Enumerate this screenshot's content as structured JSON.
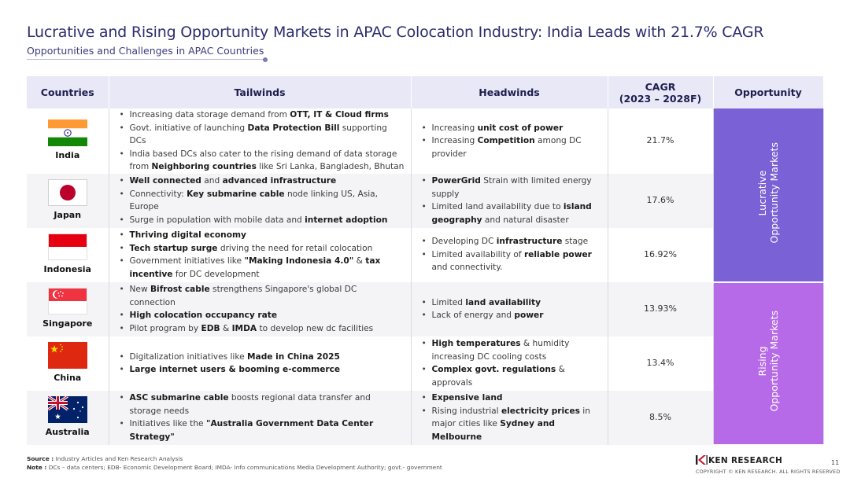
{
  "header": {
    "title": "Lucrative and Rising Opportunity Markets in APAC Colocation Industry: India Leads with 21.7% CAGR",
    "subtitle": "Opportunities and Challenges in APAC Countries"
  },
  "table": {
    "headers": {
      "countries": "Countries",
      "tailwinds": "Tailwinds",
      "headwinds": "Headwinds",
      "cagr_line1": "CAGR",
      "cagr_line2": "(2023 – 2028F)",
      "opportunity": "Opportunity"
    },
    "rows": [
      {
        "country": "India",
        "flag_icon": "india-flag-icon",
        "cagr": "21.7%",
        "tailwinds": [
          [
            "Increasing data storage demand from ",
            "OTT, IT & Cloud firms",
            ""
          ],
          [
            "Govt. initiative of launching ",
            "Data Protection Bill",
            " supporting DCs"
          ],
          [
            "India based DCs also cater to the rising demand of data storage from ",
            "Neighboring countries",
            " like Sri Lanka, Bangladesh, Bhutan"
          ]
        ],
        "headwinds": [
          [
            "Increasing ",
            "unit cost of power",
            ""
          ],
          [
            "Increasing ",
            "Competition",
            " among DC provider"
          ]
        ]
      },
      {
        "country": "Japan",
        "flag_icon": "japan-flag-icon",
        "cagr": "17.6%",
        "tailwinds": [
          [
            "",
            "Well connected",
            " and "
          ],
          [
            "Connectivity: ",
            "Key submarine cable",
            " node linking US, Asia, Europe"
          ],
          [
            "Surge in population with mobile data and ",
            "internet adoption",
            ""
          ]
        ],
        "tailwinds_extra": "advanced infrastructure",
        "headwinds": [
          [
            "",
            "PowerGrid",
            " Strain with limited energy supply"
          ],
          [
            "Limited land availability due to ",
            "island geography",
            " and natural disaster"
          ]
        ]
      },
      {
        "country": "Indonesia",
        "flag_icon": "indonesia-flag-icon",
        "cagr": "16.92%",
        "tailwinds": [
          [
            "",
            "Thriving digital economy",
            ""
          ],
          [
            "",
            "Tech startup surge",
            " driving the need for retail colocation"
          ],
          [
            "Government initiatives like ",
            "\"Making Indonesia 4.0\"",
            " & "
          ]
        ],
        "tailwinds_extra": "tax incentive",
        "tailwinds_tail": " for DC development",
        "headwinds": [
          [
            "Developing DC ",
            "infrastructure",
            " stage"
          ],
          [
            "Limited availability of ",
            "reliable power",
            " and connectivity."
          ]
        ]
      },
      {
        "country": "Singapore",
        "flag_icon": "singapore-flag-icon",
        "cagr": "13.93%",
        "tailwinds": [
          [
            "New ",
            "Bifrost cable",
            " strengthens Singapore's global DC connection"
          ],
          [
            "",
            "High colocation occupancy rate",
            ""
          ],
          [
            "Pilot program by ",
            "EDB",
            " & "
          ]
        ],
        "tailwinds_extra": "IMDA",
        "tailwinds_tail": " to develop new dc facilities",
        "headwinds": [
          [
            "Limited ",
            "land availability",
            ""
          ],
          [
            "Lack of energy and ",
            "power",
            ""
          ]
        ]
      },
      {
        "country": "China",
        "flag_icon": "china-flag-icon",
        "cagr": "13.4%",
        "tailwinds": [
          [
            "Digitalization initiatives like ",
            "Made in China 2025",
            ""
          ],
          [
            "",
            "Large internet users & booming e-commerce",
            ""
          ]
        ],
        "headwinds": [
          [
            "",
            "High temperatures",
            " & humidity increasing DC cooling costs"
          ],
          [
            "",
            "Complex govt. regulations",
            " & approvals"
          ]
        ]
      },
      {
        "country": "Australia",
        "flag_icon": "australia-flag-icon",
        "cagr": "8.5%",
        "tailwinds": [
          [
            "",
            "ASC submarine cable",
            " boosts regional data transfer and storage needs"
          ],
          [
            "Initiatives like the ",
            "\"Australia Government Data Center Strategy\"",
            ""
          ]
        ],
        "headwinds": [
          [
            "",
            "Expensive land",
            ""
          ],
          [
            "Rising industrial ",
            "electricity prices",
            " in major cities like "
          ]
        ],
        "headwinds_extra": "Sydney and Melbourne"
      }
    ],
    "opportunity_groups": [
      {
        "line1": "Lucrative",
        "line2": "Opportunity Markets",
        "color": "#7b61d6"
      },
      {
        "line1": "Rising",
        "line2": "Opportunity Markets",
        "color": "#b76ae8"
      }
    ]
  },
  "footer": {
    "source_label": "Source :",
    "source_text": " Industry Articles and Ken Research Analysis",
    "note_label": "Note :",
    "note_text": " DCs – data centers; EDB- Economic Development Board; IMDA- Info communications Media Development Authority; govt.- government",
    "brand": "KEN RESEARCH",
    "copyright": "COPYRIGHT © KEN RESEARCH. ALL RIGHTS RESERVED",
    "page_number": "11"
  },
  "colors": {
    "title": "#2b2d6e",
    "header_bg": "#e8e8f7",
    "lucrative": "#7b61d6",
    "rising": "#b76ae8"
  }
}
